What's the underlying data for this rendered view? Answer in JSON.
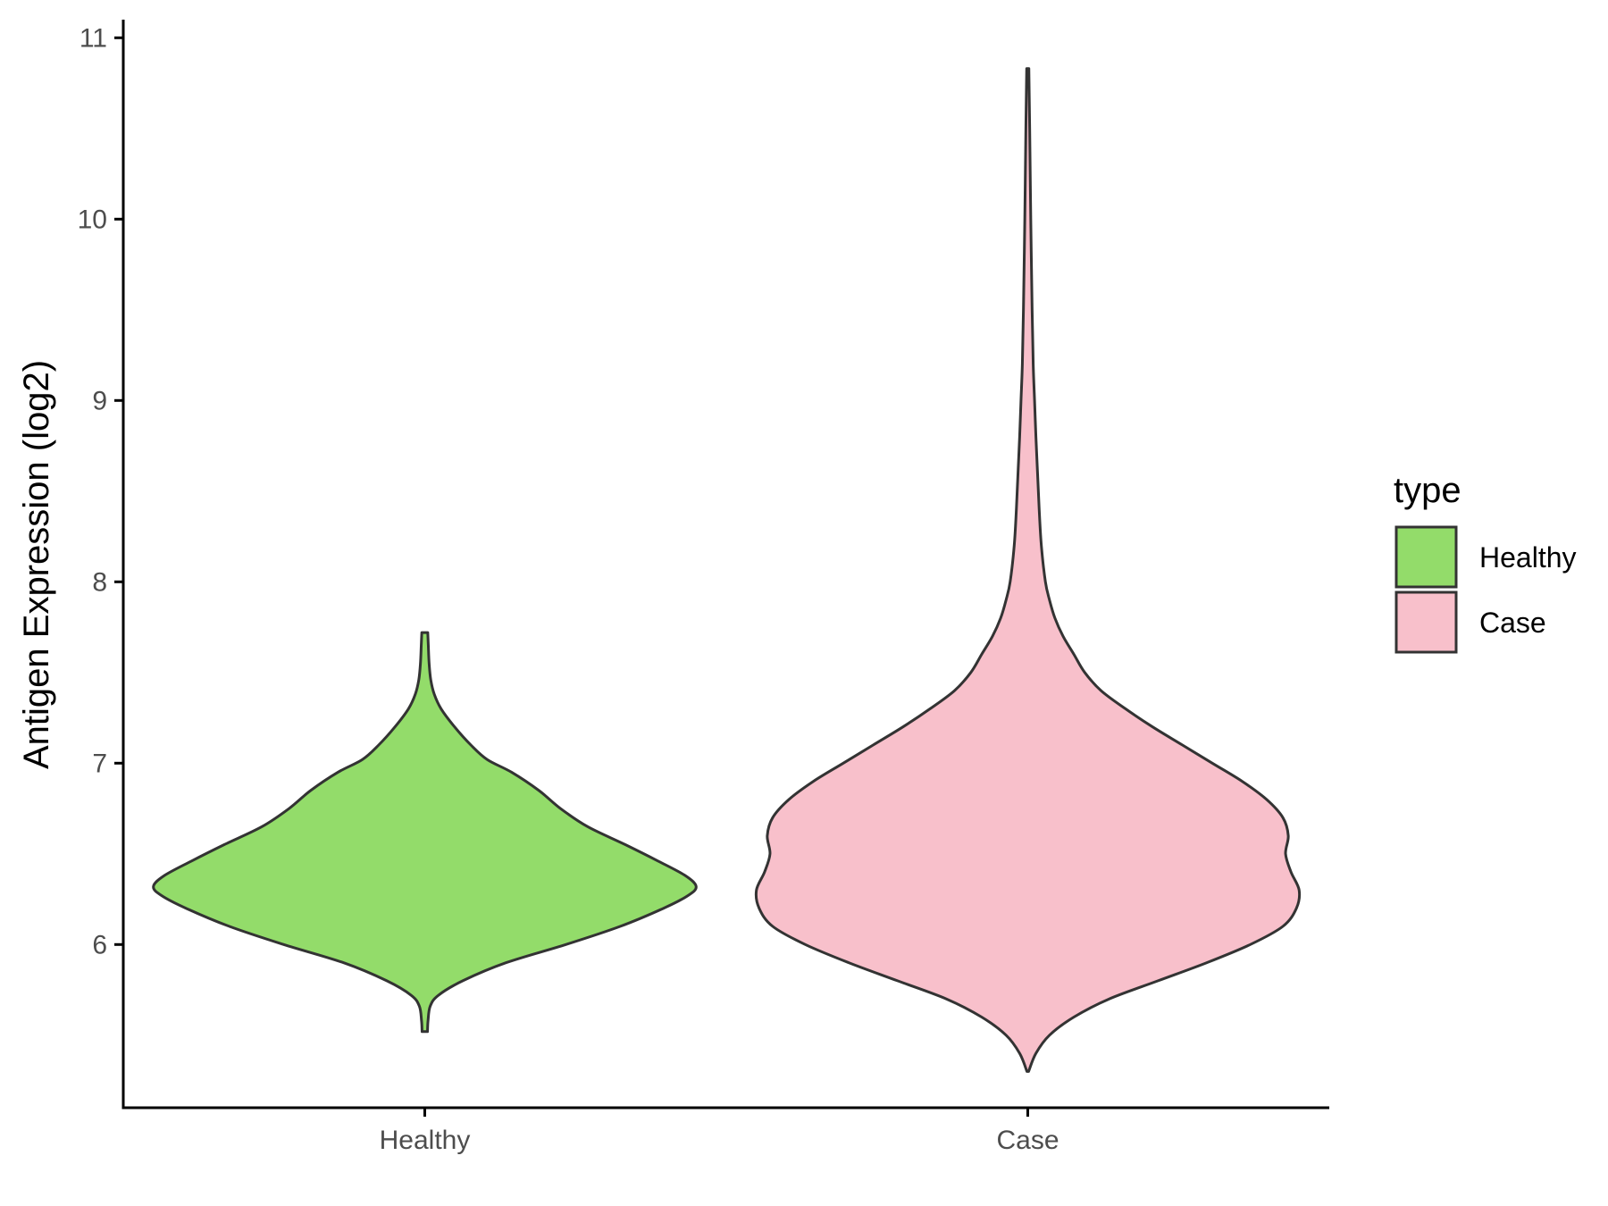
{
  "chart_data": {
    "type": "violin",
    "title": "",
    "xlabel": "",
    "ylabel": "Antigen Expression (log2)",
    "categories": [
      "Healthy",
      "Case"
    ],
    "yticks": [
      6,
      7,
      8,
      9,
      10,
      11
    ],
    "ylim": [
      5.1,
      11.1
    ],
    "series": [
      {
        "name": "Healthy",
        "color": "#93dc6a",
        "min": 5.52,
        "max": 7.72,
        "profile": [
          [
            5.52,
            0.01
          ],
          [
            5.58,
            0.012
          ],
          [
            5.66,
            0.02
          ],
          [
            5.72,
            0.05
          ],
          [
            5.8,
            0.14
          ],
          [
            5.9,
            0.3
          ],
          [
            6.0,
            0.52
          ],
          [
            6.1,
            0.72
          ],
          [
            6.2,
            0.88
          ],
          [
            6.27,
            0.97
          ],
          [
            6.32,
            1.0
          ],
          [
            6.38,
            0.96
          ],
          [
            6.46,
            0.86
          ],
          [
            6.55,
            0.74
          ],
          [
            6.65,
            0.6
          ],
          [
            6.75,
            0.5
          ],
          [
            6.85,
            0.42
          ],
          [
            6.95,
            0.32
          ],
          [
            7.02,
            0.23
          ],
          [
            7.1,
            0.17
          ],
          [
            7.2,
            0.11
          ],
          [
            7.3,
            0.06
          ],
          [
            7.38,
            0.035
          ],
          [
            7.46,
            0.022
          ],
          [
            7.55,
            0.016
          ],
          [
            7.65,
            0.013
          ],
          [
            7.72,
            0.011
          ]
        ]
      },
      {
        "name": "Case",
        "color": "#f8c0cb",
        "min": 5.3,
        "max": 10.83,
        "profile": [
          [
            5.3,
            0.003
          ],
          [
            5.4,
            0.03
          ],
          [
            5.5,
            0.08
          ],
          [
            5.6,
            0.17
          ],
          [
            5.7,
            0.3
          ],
          [
            5.8,
            0.48
          ],
          [
            5.9,
            0.66
          ],
          [
            6.0,
            0.82
          ],
          [
            6.1,
            0.94
          ],
          [
            6.2,
            0.99
          ],
          [
            6.3,
            1.0
          ],
          [
            6.4,
            0.97
          ],
          [
            6.5,
            0.95
          ],
          [
            6.6,
            0.96
          ],
          [
            6.7,
            0.94
          ],
          [
            6.8,
            0.88
          ],
          [
            6.9,
            0.79
          ],
          [
            7.0,
            0.68
          ],
          [
            7.1,
            0.57
          ],
          [
            7.2,
            0.46
          ],
          [
            7.3,
            0.36
          ],
          [
            7.4,
            0.27
          ],
          [
            7.5,
            0.21
          ],
          [
            7.6,
            0.17
          ],
          [
            7.7,
            0.13
          ],
          [
            7.8,
            0.1
          ],
          [
            7.9,
            0.08
          ],
          [
            8.0,
            0.065
          ],
          [
            8.2,
            0.05
          ],
          [
            8.4,
            0.042
          ],
          [
            8.6,
            0.036
          ],
          [
            8.8,
            0.03
          ],
          [
            9.0,
            0.025
          ],
          [
            9.2,
            0.02
          ],
          [
            9.5,
            0.016
          ],
          [
            10.0,
            0.011
          ],
          [
            10.5,
            0.007
          ],
          [
            10.83,
            0.004
          ]
        ]
      }
    ],
    "legend": {
      "title": "type",
      "position": "right",
      "entries": [
        "Healthy",
        "Case"
      ]
    },
    "grid": false
  }
}
